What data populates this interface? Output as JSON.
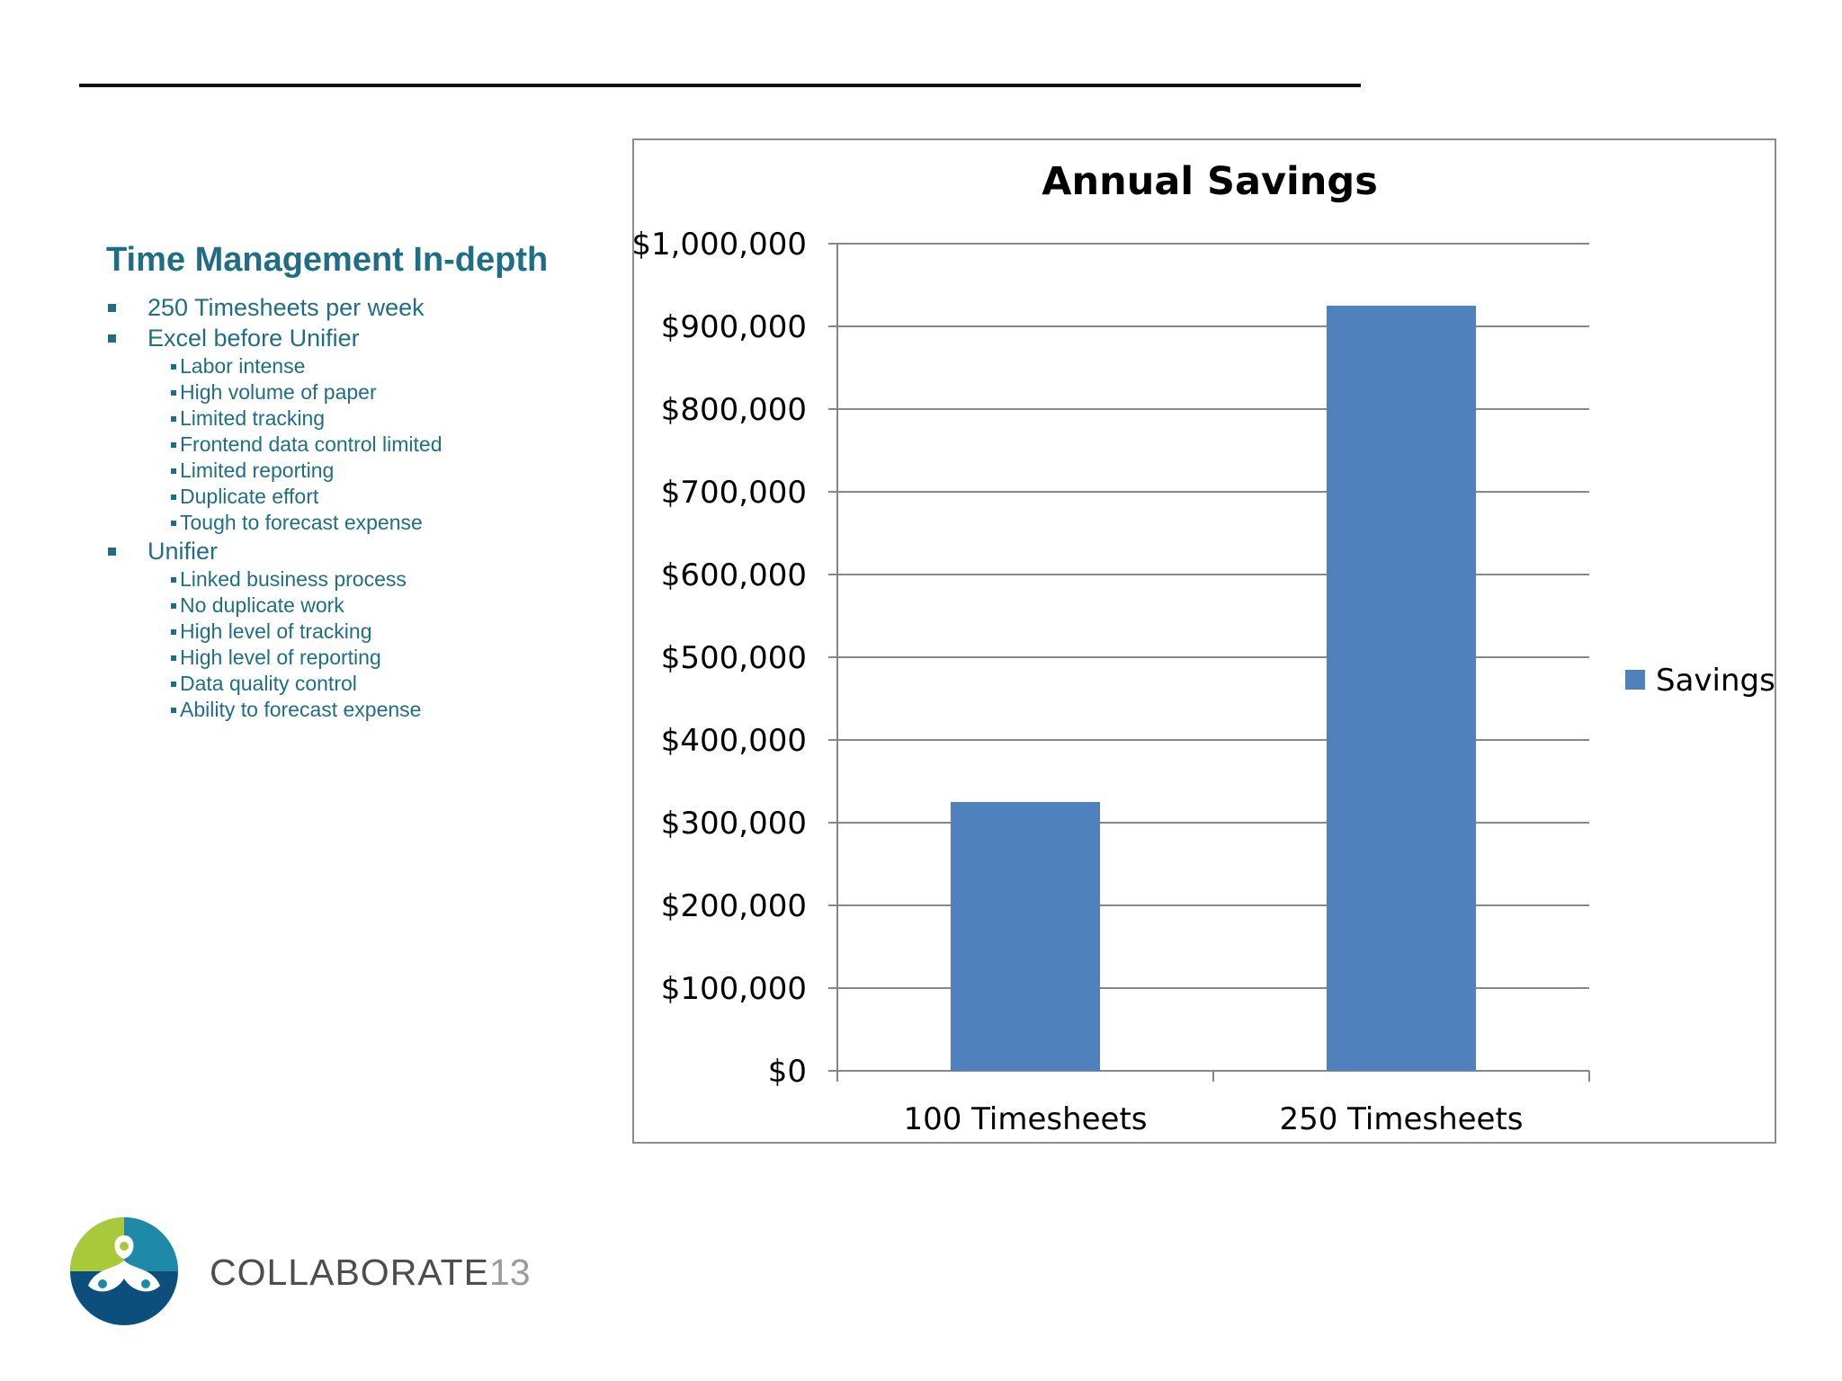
{
  "slide": {
    "title": "Time Management In-depth",
    "bullets": [
      {
        "text": "250 Timesheets per week",
        "sub": []
      },
      {
        "text": "Excel before Unifier",
        "sub": [
          "Labor intense",
          "High volume of paper",
          "Limited tracking",
          "Frontend data control limited",
          "Limited reporting",
          "Duplicate effort",
          "Tough to forecast expense"
        ]
      },
      {
        "text": "Unifier",
        "sub": [
          "Linked business process",
          "No duplicate work",
          "High level of tracking",
          "High level of reporting",
          "Data quality control",
          "Ability to forecast expense"
        ]
      }
    ]
  },
  "brand": {
    "name": "COLLABORATE",
    "number": "13"
  },
  "colors": {
    "text_accent": "#1f6e86",
    "bar": "#4f81bd",
    "grid": "#868686"
  },
  "chart_data": {
    "type": "bar",
    "title": "Annual Savings",
    "categories": [
      "100 Timesheets",
      "250 Timesheets"
    ],
    "series": [
      {
        "name": "Savings",
        "values": [
          325000,
          925000
        ]
      }
    ],
    "ylim": [
      0,
      1000000
    ],
    "yticks": [
      0,
      100000,
      200000,
      300000,
      400000,
      500000,
      600000,
      700000,
      800000,
      900000,
      1000000
    ],
    "ytick_labels": [
      "$0",
      "$100,000",
      "$200,000",
      "$300,000",
      "$400,000",
      "$500,000",
      "$600,000",
      "$700,000",
      "$800,000",
      "$900,000",
      "$1,000,000"
    ],
    "grid": true,
    "legend": "right"
  }
}
